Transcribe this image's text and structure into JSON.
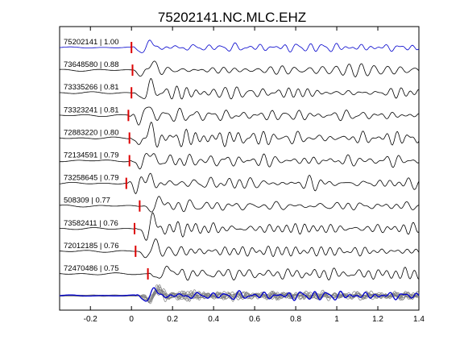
{
  "chart_data": {
    "type": "line",
    "title": "75202141.NC.MLC.EHZ",
    "xlabel": "",
    "ylabel": "",
    "xlim": [
      -0.35,
      1.4
    ],
    "xticks": [
      {
        "value": -0.2,
        "label": "-0.2"
      },
      {
        "value": 0,
        "label": "0"
      },
      {
        "value": 0.2,
        "label": "0.2"
      },
      {
        "value": 0.4,
        "label": "0.4"
      },
      {
        "value": 0.6,
        "label": "0.6"
      },
      {
        "value": 0.8,
        "label": "0.8"
      },
      {
        "value": 1.0,
        "label": "1"
      },
      {
        "value": 1.2,
        "label": "1.2"
      },
      {
        "value": 1.4,
        "label": "1.4"
      }
    ],
    "grid": false,
    "colors": {
      "master": "#0000cc",
      "trace": "#000000",
      "pick": "#dd0000",
      "stack": "#7f7f7f"
    },
    "traces": [
      {
        "label": "75202141 | 1.00",
        "pick": 0.0,
        "color": "master"
      },
      {
        "label": "73648580 | 0.88",
        "pick": 0.005,
        "color": "trace"
      },
      {
        "label": "73335266 | 0.81",
        "pick": 0.0,
        "color": "trace"
      },
      {
        "label": "73323241 | 0.81",
        "pick": -0.015,
        "color": "trace"
      },
      {
        "label": "72883220 | 0.80",
        "pick": -0.01,
        "color": "trace"
      },
      {
        "label": "72134591 | 0.79",
        "pick": -0.01,
        "color": "trace"
      },
      {
        "label": "73258645 | 0.79",
        "pick": -0.025,
        "color": "trace"
      },
      {
        "label": "508309 | 0.77",
        "pick": 0.04,
        "color": "trace"
      },
      {
        "label": "73582411 | 0.76",
        "pick": 0.015,
        "color": "trace"
      },
      {
        "label": "72012185 | 0.76",
        "pick": 0.02,
        "color": "trace"
      },
      {
        "label": "72470486 | 0.75",
        "pick": 0.08,
        "color": "trace"
      }
    ],
    "stack": {
      "overlay_count": 10
    }
  }
}
